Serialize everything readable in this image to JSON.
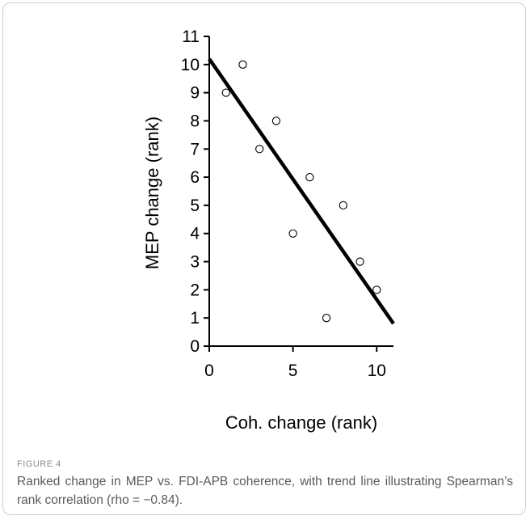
{
  "figure": {
    "label": "FIGURE 4",
    "caption": "Ranked change in MEP vs. FDI-APB coherence, with trend line illustrating Spearman’s rank correlation (rho = −0.84)."
  },
  "colors": {
    "axis": "#000000",
    "marker": "#000000",
    "trend": "#000000",
    "border": "#cfcfcf",
    "caption": "#5a5a5a",
    "label": "#8a8a8a"
  },
  "chart_data": {
    "type": "scatter",
    "xlabel": "Coh. change (rank)",
    "ylabel": "MEP change (rank)",
    "xlim": [
      0,
      11
    ],
    "ylim": [
      0,
      11
    ],
    "xticks": [
      0,
      5,
      10
    ],
    "yticks": [
      0,
      1,
      2,
      3,
      4,
      5,
      6,
      7,
      8,
      9,
      10,
      11
    ],
    "grid": false,
    "legend": "none",
    "points": [
      {
        "x": 1,
        "y": 9
      },
      {
        "x": 2,
        "y": 10
      },
      {
        "x": 3,
        "y": 7
      },
      {
        "x": 4,
        "y": 8
      },
      {
        "x": 5,
        "y": 4
      },
      {
        "x": 6,
        "y": 6
      },
      {
        "x": 7,
        "y": 1
      },
      {
        "x": 8,
        "y": 5
      },
      {
        "x": 9,
        "y": 3
      },
      {
        "x": 10,
        "y": 2
      }
    ],
    "trend_line": {
      "x": [
        0,
        11
      ],
      "y": [
        10.2,
        0.8
      ]
    }
  }
}
